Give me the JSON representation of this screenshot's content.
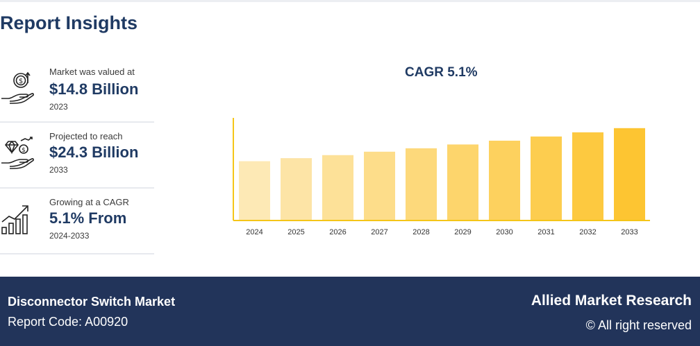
{
  "page": {
    "title": "Report Insights"
  },
  "insights": [
    {
      "label": "Market was valued at",
      "value": "$14.8 Billion",
      "year": "2023",
      "icon": "money-hand-icon"
    },
    {
      "label": "Projected to reach",
      "value": "$24.3 Billion",
      "year": "2033",
      "icon": "diamond-hand-icon"
    },
    {
      "label": "Growing at a CAGR",
      "value": "5.1% From",
      "year": "2024-2033",
      "icon": "growth-chart-icon"
    }
  ],
  "chart_data": {
    "type": "bar",
    "title": "CAGR 5.1%",
    "categories": [
      "2024",
      "2025",
      "2026",
      "2027",
      "2028",
      "2029",
      "2030",
      "2031",
      "2032",
      "2033"
    ],
    "values": [
      15.6,
      16.4,
      17.2,
      18.1,
      19.0,
      20.0,
      21.0,
      22.1,
      23.2,
      24.3
    ],
    "xlabel": "",
    "ylabel": "",
    "ylim": [
      0,
      27
    ],
    "grid": false,
    "colors": [
      "#fde9b5",
      "#fde4a6",
      "#fde198",
      "#fddd8a",
      "#fdd97b",
      "#fdd56c",
      "#fdd15e",
      "#fdcd4f",
      "#fdc940",
      "#fdc532"
    ],
    "axis_color": "#f5c518"
  },
  "footer": {
    "report_name": "Disconnector Switch Market",
    "report_code": "Report Code: A00920",
    "brand": "Allied Market Research",
    "rights": "© All right reserved"
  }
}
